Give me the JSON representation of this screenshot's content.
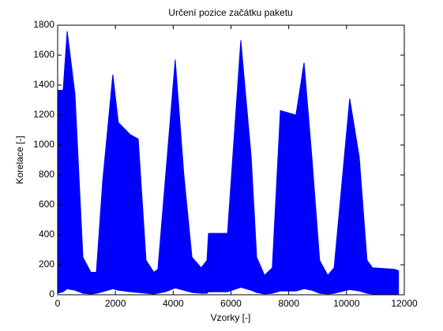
{
  "chart_data": {
    "type": "area",
    "title": "Určení pozice začátku paketu",
    "xlabel": "Vzorky [-]",
    "ylabel": "Korelace [-]",
    "color": "#0000ff",
    "x": [
      0,
      190,
      330,
      600,
      875,
      1150,
      1340,
      1560,
      1910,
      2100,
      2510,
      2790,
      3060,
      3330,
      3470,
      3740,
      4070,
      4370,
      4650,
      4970,
      5170,
      5220,
      5880,
      6340,
      6700,
      6890,
      7160,
      7430,
      7710,
      8250,
      8530,
      8800,
      9070,
      9350,
      9570,
      10110,
      10440,
      10710,
      10900,
      11670,
      11800
    ],
    "values": [
      1365,
      1365,
      1760,
      1340,
      250,
      150,
      150,
      760,
      1470,
      1150,
      1070,
      1040,
      230,
      150,
      170,
      800,
      1570,
      800,
      250,
      180,
      230,
      410,
      410,
      1700,
      920,
      250,
      130,
      180,
      1230,
      1200,
      1550,
      920,
      230,
      130,
      180,
      1310,
      920,
      230,
      180,
      170,
      160
    ],
    "lower": [
      10,
      20,
      40,
      30,
      10,
      5,
      10,
      20,
      40,
      30,
      20,
      15,
      10,
      5,
      10,
      20,
      45,
      30,
      15,
      10,
      10,
      20,
      20,
      50,
      30,
      15,
      5,
      10,
      25,
      25,
      40,
      30,
      10,
      5,
      10,
      35,
      25,
      10,
      5,
      5,
      5
    ],
    "xlim": [
      0,
      12000
    ],
    "ylim": [
      0,
      1800
    ],
    "xticks": [
      0,
      2000,
      4000,
      6000,
      8000,
      10000,
      12000
    ],
    "yticks": [
      0,
      200,
      400,
      600,
      800,
      1000,
      1200,
      1400,
      1600,
      1800
    ]
  }
}
